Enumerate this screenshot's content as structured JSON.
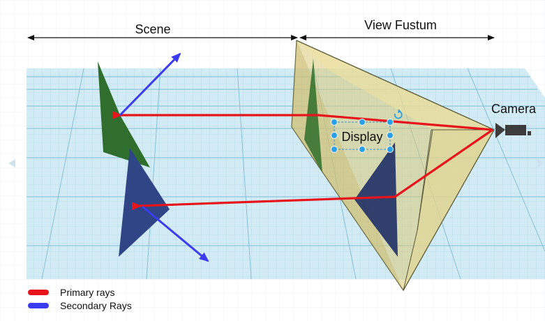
{
  "labels": {
    "scene": "Scene",
    "view_frustum": "View Fustum",
    "camera": "Camera",
    "display": "Display"
  },
  "legend": {
    "items": [
      {
        "label": "Primary rays",
        "color": "#e8141b"
      },
      {
        "label": "Secondary Rays",
        "color": "#3b3bf0"
      }
    ]
  },
  "colors": {
    "grid_background": "#cfe7f2",
    "grid_line": "#8fc6dc",
    "green_triangle": "#2f6e2c",
    "blue_triangle": "#2f4585",
    "frustum_fill": "#e8d98c",
    "primary_ray": "#e8141b",
    "secondary_ray": "#3b3bf0",
    "handle": "#2aa0e8",
    "camera_body": "#3c3c3c"
  }
}
